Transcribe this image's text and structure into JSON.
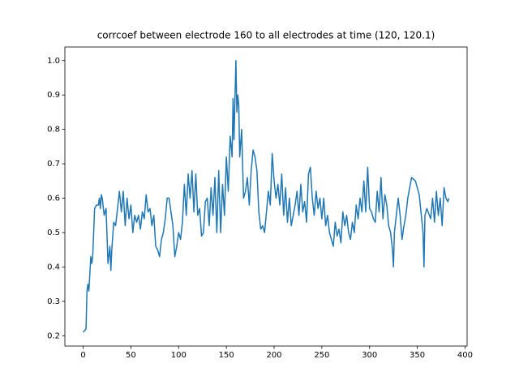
{
  "chart_data": {
    "type": "line",
    "title": "corrcoef between electrode 160 to all electrodes at time (120, 120.1)",
    "x": [
      0,
      3,
      4,
      5,
      6,
      8,
      9,
      10,
      12,
      14,
      16,
      17,
      18,
      19,
      20,
      22,
      24,
      26,
      28,
      29,
      30,
      32,
      34,
      36,
      38,
      40,
      42,
      44,
      46,
      48,
      50,
      52,
      54,
      56,
      58,
      60,
      62,
      64,
      66,
      68,
      70,
      72,
      74,
      76,
      78,
      80,
      82,
      84,
      86,
      88,
      90,
      92,
      94,
      96,
      98,
      100,
      102,
      104,
      106,
      108,
      110,
      112,
      114,
      116,
      118,
      120,
      122,
      124,
      126,
      128,
      130,
      132,
      134,
      136,
      138,
      140,
      142,
      144,
      146,
      148,
      150,
      152,
      154,
      156,
      157,
      158,
      159,
      160,
      161,
      162,
      163,
      164,
      166,
      168,
      170,
      172,
      174,
      176,
      178,
      180,
      182,
      184,
      186,
      188,
      190,
      192,
      194,
      196,
      198,
      200,
      202,
      204,
      206,
      208,
      210,
      212,
      214,
      216,
      218,
      220,
      222,
      224,
      226,
      228,
      230,
      232,
      234,
      236,
      238,
      240,
      242,
      244,
      246,
      248,
      250,
      252,
      254,
      256,
      258,
      260,
      262,
      264,
      266,
      268,
      270,
      272,
      274,
      276,
      278,
      280,
      282,
      284,
      286,
      288,
      290,
      292,
      294,
      296,
      298,
      300,
      302,
      304,
      306,
      308,
      310,
      312,
      314,
      316,
      318,
      320,
      322,
      324,
      325,
      326,
      328,
      330,
      332,
      334,
      336,
      338,
      340,
      344,
      348,
      350,
      352,
      356,
      357,
      358,
      360,
      364,
      366,
      368,
      370,
      372,
      374,
      376,
      378,
      380,
      382,
      383
    ],
    "series": [
      {
        "color": "#1f77b4",
        "values": [
          0.21,
          0.22,
          0.33,
          0.35,
          0.33,
          0.43,
          0.41,
          0.43,
          0.57,
          0.58,
          0.58,
          0.6,
          0.57,
          0.61,
          0.6,
          0.55,
          0.57,
          0.41,
          0.46,
          0.39,
          0.45,
          0.53,
          0.52,
          0.57,
          0.62,
          0.56,
          0.62,
          0.52,
          0.6,
          0.54,
          0.58,
          0.5,
          0.55,
          0.53,
          0.55,
          0.51,
          0.56,
          0.54,
          0.61,
          0.56,
          0.57,
          0.52,
          0.55,
          0.46,
          0.45,
          0.43,
          0.48,
          0.5,
          0.54,
          0.6,
          0.6,
          0.56,
          0.52,
          0.43,
          0.46,
          0.5,
          0.48,
          0.53,
          0.64,
          0.55,
          0.67,
          0.6,
          0.68,
          0.56,
          0.67,
          0.55,
          0.57,
          0.49,
          0.5,
          0.59,
          0.6,
          0.52,
          0.63,
          0.55,
          0.66,
          0.5,
          0.68,
          0.5,
          0.64,
          0.55,
          0.72,
          0.62,
          0.78,
          0.72,
          0.89,
          0.77,
          0.89,
          1.0,
          0.85,
          0.9,
          0.87,
          0.72,
          0.8,
          0.6,
          0.62,
          0.66,
          0.58,
          0.68,
          0.74,
          0.72,
          0.68,
          0.56,
          0.51,
          0.52,
          0.5,
          0.56,
          0.62,
          0.58,
          0.73,
          0.65,
          0.6,
          0.64,
          0.58,
          0.67,
          0.55,
          0.63,
          0.53,
          0.6,
          0.52,
          0.55,
          0.58,
          0.62,
          0.55,
          0.64,
          0.56,
          0.59,
          0.53,
          0.67,
          0.69,
          0.6,
          0.55,
          0.62,
          0.57,
          0.6,
          0.54,
          0.6,
          0.52,
          0.55,
          0.5,
          0.48,
          0.46,
          0.53,
          0.49,
          0.51,
          0.47,
          0.56,
          0.52,
          0.55,
          0.5,
          0.48,
          0.53,
          0.5,
          0.58,
          0.54,
          0.6,
          0.56,
          0.65,
          0.56,
          0.69,
          0.57,
          0.56,
          0.54,
          0.53,
          0.62,
          0.56,
          0.66,
          0.54,
          0.61,
          0.58,
          0.52,
          0.5,
          0.45,
          0.4,
          0.5,
          0.55,
          0.6,
          0.55,
          0.48,
          0.52,
          0.55,
          0.6,
          0.66,
          0.65,
          0.63,
          0.61,
          0.5,
          0.4,
          0.55,
          0.57,
          0.54,
          0.6,
          0.53,
          0.62,
          0.55,
          0.6,
          0.52,
          0.63,
          0.6,
          0.59,
          0.6
        ]
      }
    ],
    "xlim": [
      -19.15,
      402.15
    ],
    "xticks": [
      0,
      50,
      100,
      150,
      200,
      250,
      300,
      350,
      400
    ],
    "ylim": [
      0.17,
      1.0395
    ],
    "yticks": [
      0.2,
      0.3,
      0.4,
      0.5,
      0.6,
      0.7,
      0.8,
      0.9,
      {
        "value": 1,
        "label": "1.0"
      }
    ],
    "grid": false
  }
}
